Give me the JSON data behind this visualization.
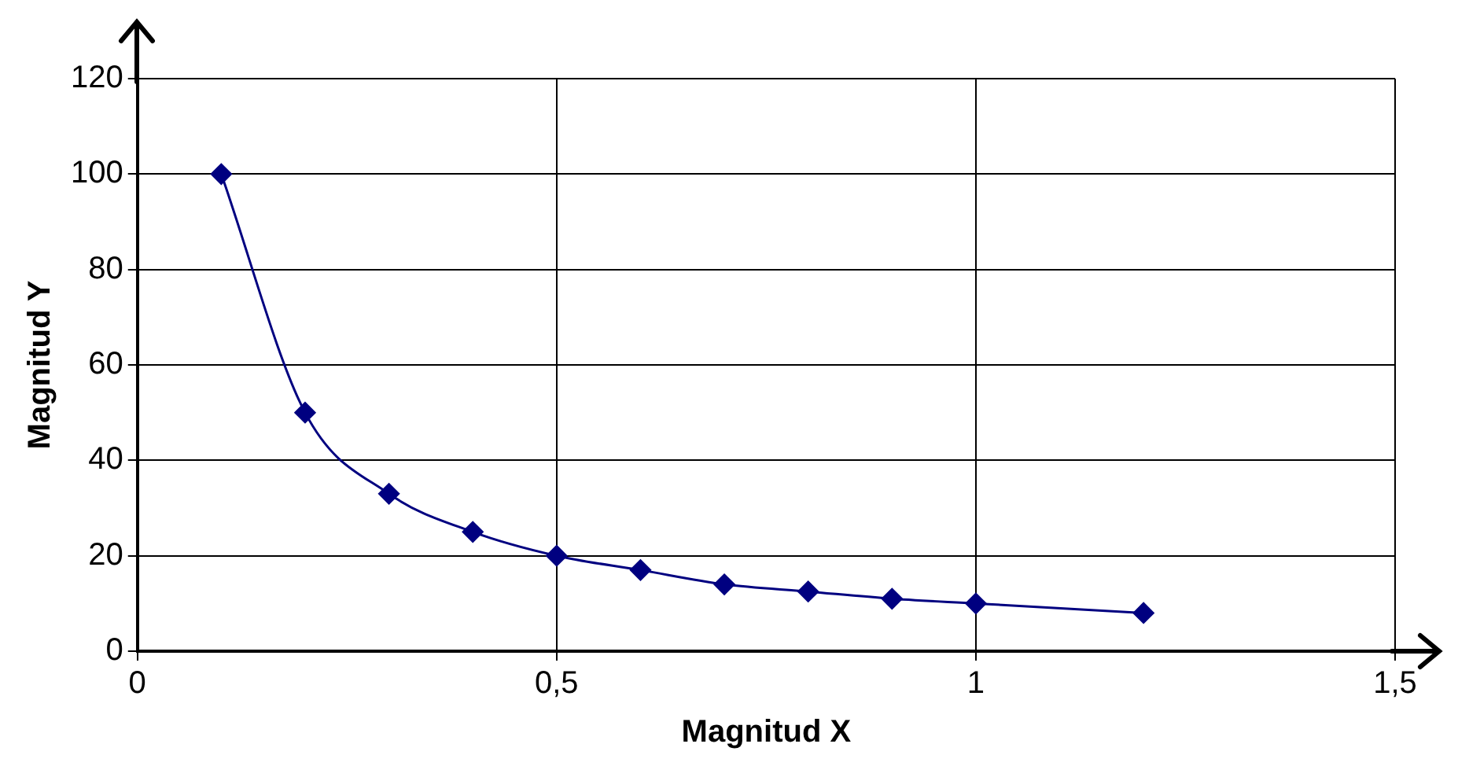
{
  "chart_data": {
    "type": "line",
    "xlabel": "Magnitud X",
    "ylabel": "Magnitud Y",
    "x": [
      0.1,
      0.2,
      0.3,
      0.4,
      0.5,
      0.6,
      0.7,
      0.8,
      0.9,
      1.0,
      1.2
    ],
    "series": [
      {
        "color": "#000080",
        "values": [
          100,
          50,
          33,
          25,
          20,
          17,
          14,
          12.5,
          11,
          10,
          8
        ]
      }
    ],
    "xlim": [
      0,
      1.5
    ],
    "xticks": [
      {
        "value": 0,
        "label": "0"
      },
      {
        "value": 0.5,
        "label": "0,5"
      },
      {
        "value": 1,
        "label": "1"
      },
      {
        "value": 1.5,
        "label": "1,5"
      }
    ],
    "ylim": [
      0,
      120
    ],
    "yticks": [
      0,
      20,
      40,
      60,
      80,
      100,
      120
    ],
    "grid": true,
    "legend": false,
    "marker": "diamond",
    "line_style": "solid"
  }
}
